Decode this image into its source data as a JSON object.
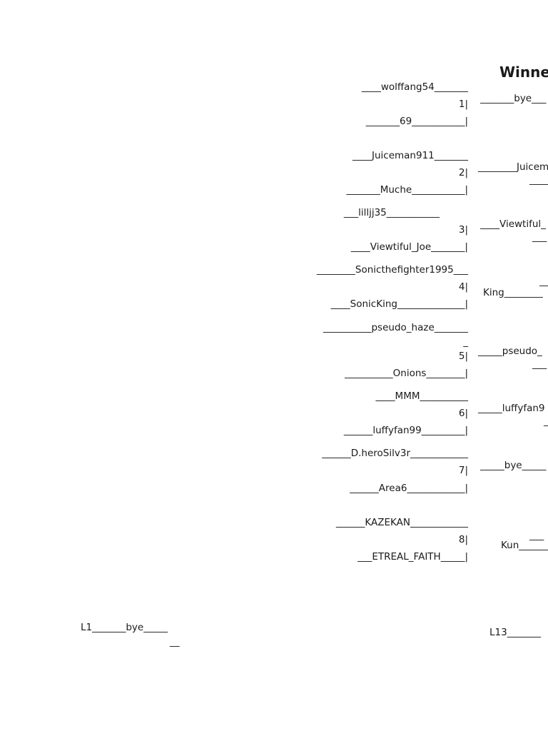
{
  "title": "Winne",
  "left_column": [
    "____wolffang54_______",
    "1|",
    "_______69___________|",
    "____Juiceman911_______",
    "2|",
    "_______Muche___________|",
    "___lilljj35___________",
    "3|",
    "____Viewtiful_Joe_______|",
    "________Sonicthefighter1995___",
    "4|",
    "____SonicKing______________|",
    "__________pseudo_haze_______",
    "_",
    "5|",
    "__________Onions________|",
    "____MMM__________",
    "6|",
    "______luffyfan99_________|",
    "______D.heroSilv3r____________",
    "7|",
    "______Area6____________|",
    "______KAZEKAN____________",
    "8|",
    "___ETREAL_FAITH_____|"
  ],
  "right_column": [
    "_______bye___",
    "________Juicem",
    "____",
    "____Viewtiful_",
    "___",
    "__",
    "King________",
    "_____pseudo_",
    "___",
    "_____luffyfan9",
    "_",
    "_____bye_____",
    "___",
    "Kun_______",
    "L13_______"
  ],
  "losers": [
    "L1_______bye_____",
    "__"
  ]
}
